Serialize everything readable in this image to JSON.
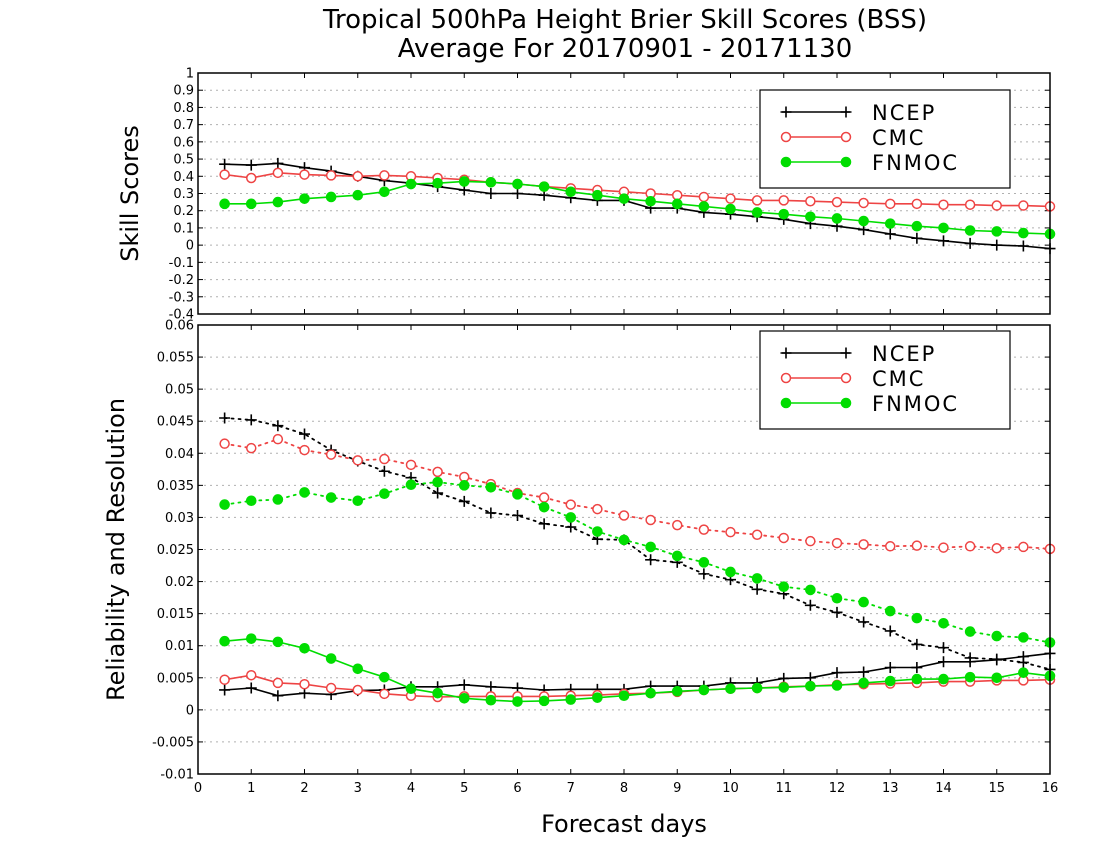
{
  "chart_data": [
    {
      "type": "line",
      "title": "Tropical 500hPa Height Brier Skill Scores (BSS)",
      "subtitle": "Average For 20170901 - 20171130",
      "xlabel": "",
      "ylabel": "Skill Scores",
      "xlim": [
        0,
        16
      ],
      "ylim": [
        -0.4,
        1
      ],
      "yticks": [
        "-0.4",
        "-0.3",
        "-0.2",
        "-0.1",
        "0",
        "0.1",
        "0.2",
        "0.3",
        "0.4",
        "0.5",
        "0.6",
        "0.7",
        "0.8",
        "0.9",
        "1"
      ],
      "grid": true,
      "legend": "top-right",
      "x": [
        0.5,
        1,
        1.5,
        2,
        2.5,
        3,
        3.5,
        4,
        4.5,
        5,
        5.5,
        6,
        6.5,
        7,
        7.5,
        8,
        8.5,
        9,
        9.5,
        10,
        10.5,
        11,
        11.5,
        12,
        12.5,
        13,
        13.5,
        14,
        14.5,
        15,
        15.5,
        16
      ],
      "series": [
        {
          "name": "NCEP",
          "color": "#000000",
          "marker": "plus",
          "style": "solid",
          "values": [
            0.47,
            0.465,
            0.475,
            0.45,
            0.43,
            0.4,
            0.375,
            0.36,
            0.34,
            0.32,
            0.3,
            0.3,
            0.29,
            0.275,
            0.26,
            0.26,
            0.215,
            0.215,
            0.19,
            0.18,
            0.165,
            0.15,
            0.125,
            0.11,
            0.09,
            0.065,
            0.04,
            0.025,
            0.01,
            0.0,
            -0.005,
            -0.02
          ]
        },
        {
          "name": "CMC",
          "color": "#ee4444",
          "marker": "open-circle",
          "style": "solid",
          "values": [
            0.41,
            0.39,
            0.42,
            0.41,
            0.405,
            0.4,
            0.405,
            0.4,
            0.39,
            0.38,
            0.365,
            0.355,
            0.34,
            0.33,
            0.32,
            0.31,
            0.3,
            0.29,
            0.28,
            0.27,
            0.26,
            0.26,
            0.255,
            0.25,
            0.245,
            0.24,
            0.24,
            0.235,
            0.235,
            0.23,
            0.23,
            0.225
          ]
        },
        {
          "name": "FNMOC",
          "color": "#00dd00",
          "marker": "filled-circle",
          "style": "solid",
          "values": [
            0.24,
            0.24,
            0.25,
            0.27,
            0.28,
            0.29,
            0.31,
            0.355,
            0.36,
            0.37,
            0.365,
            0.355,
            0.34,
            0.31,
            0.29,
            0.27,
            0.255,
            0.24,
            0.225,
            0.21,
            0.19,
            0.18,
            0.165,
            0.155,
            0.14,
            0.125,
            0.11,
            0.1,
            0.085,
            0.08,
            0.07,
            0.065
          ]
        }
      ]
    },
    {
      "type": "line",
      "xlabel": "Forecast days",
      "ylabel": "Reliability and Resolution",
      "xlim": [
        0,
        16
      ],
      "ylim": [
        -0.01,
        0.06
      ],
      "xticks": [
        "0",
        "1",
        "2",
        "3",
        "4",
        "5",
        "6",
        "7",
        "8",
        "9",
        "10",
        "11",
        "12",
        "13",
        "14",
        "15",
        "16"
      ],
      "yticks": [
        "-0.01",
        "-0.005",
        "0",
        "0.005",
        "0.01",
        "0.015",
        "0.02",
        "0.025",
        "0.03",
        "0.035",
        "0.04",
        "0.045",
        "0.05",
        "0.055",
        "0.06"
      ],
      "grid": true,
      "legend": "top-right",
      "x": [
        0.5,
        1,
        1.5,
        2,
        2.5,
        3,
        3.5,
        4,
        4.5,
        5,
        5.5,
        6,
        6.5,
        7,
        7.5,
        8,
        8.5,
        9,
        9.5,
        10,
        10.5,
        11,
        11.5,
        12,
        12.5,
        13,
        13.5,
        14,
        14.5,
        15,
        15.5,
        16
      ],
      "series": [
        {
          "name": "NCEP",
          "group": "resolution",
          "color": "#000000",
          "marker": "plus",
          "style": "dotted",
          "values": [
            0.0455,
            0.0452,
            0.0443,
            0.043,
            0.0405,
            0.0388,
            0.0372,
            0.0362,
            0.0338,
            0.0325,
            0.0307,
            0.0303,
            0.029,
            0.0285,
            0.0266,
            0.0265,
            0.0234,
            0.023,
            0.0212,
            0.0203,
            0.0188,
            0.0181,
            0.0163,
            0.0152,
            0.0137,
            0.0123,
            0.0102,
            0.0097,
            0.0081,
            0.0079,
            0.0074,
            0.0063
          ]
        },
        {
          "name": "CMC",
          "group": "resolution",
          "color": "#ee4444",
          "marker": "open-circle",
          "style": "dotted",
          "values": [
            0.0415,
            0.0408,
            0.0422,
            0.0405,
            0.0398,
            0.0389,
            0.0391,
            0.0382,
            0.0371,
            0.0363,
            0.0352,
            0.0338,
            0.0331,
            0.032,
            0.0313,
            0.0303,
            0.0296,
            0.0288,
            0.0281,
            0.0277,
            0.0273,
            0.0268,
            0.0263,
            0.026,
            0.0258,
            0.0255,
            0.0256,
            0.0253,
            0.0255,
            0.0252,
            0.0254,
            0.0251
          ]
        },
        {
          "name": "FNMOC",
          "group": "resolution",
          "color": "#00dd00",
          "marker": "filled-circle",
          "style": "dotted",
          "values": [
            0.032,
            0.0326,
            0.0328,
            0.0339,
            0.0331,
            0.0326,
            0.0337,
            0.0351,
            0.0355,
            0.035,
            0.0347,
            0.0336,
            0.0316,
            0.03,
            0.0278,
            0.0265,
            0.0254,
            0.024,
            0.023,
            0.0215,
            0.0205,
            0.0192,
            0.0187,
            0.0174,
            0.0168,
            0.0154,
            0.0143,
            0.0135,
            0.0122,
            0.0115,
            0.0113,
            0.0105
          ]
        },
        {
          "name": "NCEP",
          "group": "reliability",
          "color": "#000000",
          "marker": "plus",
          "style": "solid",
          "values": [
            0.0031,
            0.0034,
            0.0022,
            0.0026,
            0.0024,
            0.003,
            0.0031,
            0.0036,
            0.0036,
            0.0039,
            0.0036,
            0.0034,
            0.0031,
            0.0032,
            0.0032,
            0.0032,
            0.0037,
            0.0037,
            0.0037,
            0.0042,
            0.0042,
            0.0049,
            0.005,
            0.0058,
            0.0059,
            0.0066,
            0.0066,
            0.0075,
            0.0075,
            0.0078,
            0.0083,
            0.0088
          ]
        },
        {
          "name": "CMC",
          "group": "reliability",
          "color": "#ee4444",
          "marker": "open-circle",
          "style": "solid",
          "values": [
            0.0047,
            0.0054,
            0.0042,
            0.004,
            0.0034,
            0.0031,
            0.0025,
            0.0022,
            0.002,
            0.0021,
            0.0021,
            0.0021,
            0.0021,
            0.0022,
            0.0023,
            0.0025,
            0.0026,
            0.0028,
            0.0031,
            0.0033,
            0.0034,
            0.0036,
            0.0037,
            0.0039,
            0.004,
            0.0041,
            0.0042,
            0.0044,
            0.0044,
            0.0046,
            0.0046,
            0.0047
          ]
        },
        {
          "name": "FNMOC",
          "group": "reliability",
          "color": "#00dd00",
          "marker": "filled-circle",
          "style": "solid",
          "values": [
            0.0107,
            0.0111,
            0.0106,
            0.0096,
            0.008,
            0.0064,
            0.0051,
            0.0033,
            0.0026,
            0.0018,
            0.0015,
            0.0013,
            0.0014,
            0.0016,
            0.0019,
            0.0022,
            0.0026,
            0.0029,
            0.0031,
            0.0033,
            0.0034,
            0.0035,
            0.0037,
            0.0038,
            0.0042,
            0.0045,
            0.0048,
            0.0048,
            0.0051,
            0.005,
            0.0058,
            0.0053
          ]
        }
      ]
    }
  ]
}
